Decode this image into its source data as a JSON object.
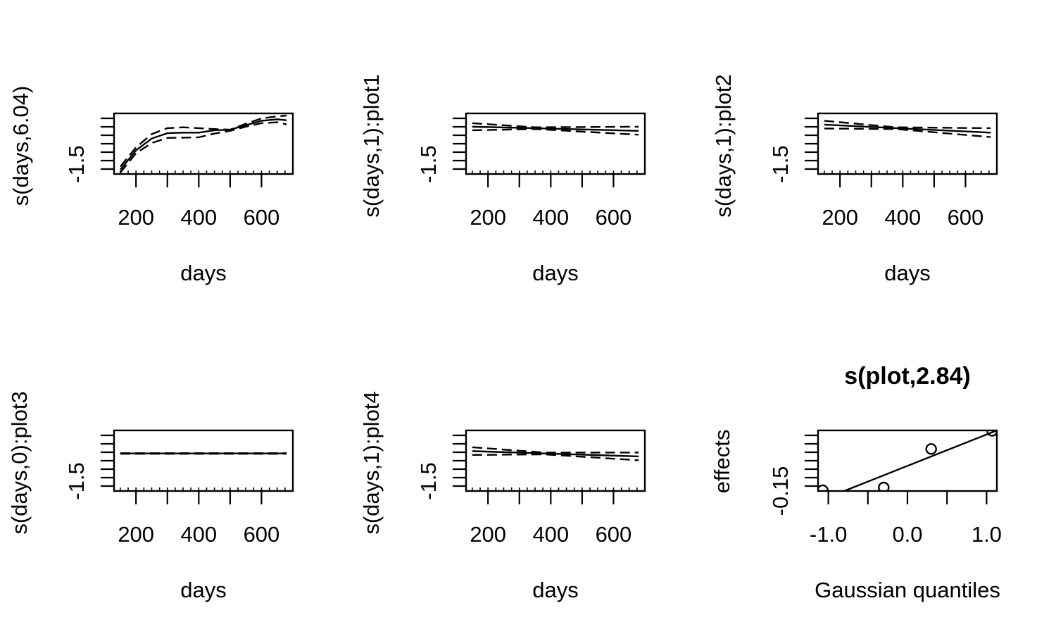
{
  "chart_data": [
    {
      "type": "line",
      "title": "",
      "xlabel": "days",
      "ylabel": "s(days,6.04)",
      "xlim": [
        130,
        700
      ],
      "ylim": [
        -1.6,
        0.45
      ],
      "xticks": [
        200,
        400,
        600
      ],
      "yticks_labeled": [
        -1.5
      ],
      "x": [
        150,
        200,
        250,
        300,
        350,
        400,
        450,
        500,
        550,
        600,
        650,
        680
      ],
      "series": [
        {
          "style": "solid",
          "values": [
            -1.45,
            -0.8,
            -0.4,
            -0.22,
            -0.2,
            -0.2,
            -0.12,
            -0.1,
            0.05,
            0.2,
            0.25,
            0.22
          ]
        },
        {
          "style": "dashed",
          "values": [
            -1.35,
            -0.7,
            -0.25,
            -0.05,
            -0.02,
            -0.05,
            -0.08,
            -0.1,
            0.1,
            0.28,
            0.35,
            0.38
          ]
        },
        {
          "style": "dashed",
          "values": [
            -1.55,
            -0.9,
            -0.55,
            -0.38,
            -0.37,
            -0.36,
            -0.23,
            -0.14,
            0.0,
            0.12,
            0.15,
            0.08
          ]
        }
      ]
    },
    {
      "type": "line",
      "title": "",
      "xlabel": "days",
      "ylabel": "s(days,1):plot1",
      "xlim": [
        130,
        700
      ],
      "ylim": [
        -1.6,
        0.45
      ],
      "xticks": [
        200,
        400,
        600
      ],
      "yticks_labeled": [
        -1.5
      ],
      "x": [
        150,
        350,
        680
      ],
      "series": [
        {
          "style": "solid",
          "values": [
            0.0,
            -0.05,
            -0.14
          ]
        },
        {
          "style": "dashed",
          "values": [
            0.12,
            -0.02,
            0.0
          ]
        },
        {
          "style": "dashed",
          "values": [
            -0.12,
            -0.08,
            -0.27
          ]
        }
      ]
    },
    {
      "type": "line",
      "title": "",
      "xlabel": "days",
      "ylabel": "s(days,1):plot2",
      "xlim": [
        130,
        700
      ],
      "ylim": [
        -1.6,
        0.45
      ],
      "xticks": [
        200,
        400,
        600
      ],
      "yticks_labeled": [
        -1.5
      ],
      "x": [
        150,
        380,
        680
      ],
      "series": [
        {
          "style": "solid",
          "values": [
            0.07,
            -0.05,
            -0.2
          ]
        },
        {
          "style": "dashed",
          "values": [
            0.2,
            -0.02,
            -0.05
          ]
        },
        {
          "style": "dashed",
          "values": [
            -0.06,
            -0.08,
            -0.35
          ]
        }
      ]
    },
    {
      "type": "line",
      "title": "",
      "xlabel": "days",
      "ylabel": "s(days,0):plot3",
      "xlim": [
        130,
        700
      ],
      "ylim": [
        -1.6,
        0.45
      ],
      "xticks": [
        200,
        400,
        600
      ],
      "yticks_labeled": [
        -1.5
      ],
      "x": [
        150,
        680
      ],
      "series": [
        {
          "style": "solid",
          "values": [
            -0.33,
            -0.33
          ]
        },
        {
          "style": "dashed",
          "values": [
            -0.32,
            -0.32
          ]
        },
        {
          "style": "dashed",
          "values": [
            -0.34,
            -0.34
          ]
        }
      ]
    },
    {
      "type": "line",
      "title": "",
      "xlabel": "days",
      "ylabel": "s(days,1):plot4",
      "xlim": [
        130,
        700
      ],
      "ylim": [
        -1.6,
        0.45
      ],
      "xticks": [
        200,
        400,
        600
      ],
      "yticks_labeled": [
        -1.5
      ],
      "x": [
        150,
        380,
        680
      ],
      "series": [
        {
          "style": "solid",
          "values": [
            -0.25,
            -0.33,
            -0.43
          ]
        },
        {
          "style": "dashed",
          "values": [
            -0.12,
            -0.3,
            -0.3
          ]
        },
        {
          "style": "dashed",
          "values": [
            -0.38,
            -0.36,
            -0.56
          ]
        }
      ]
    },
    {
      "type": "scatter",
      "title": "s(plot,2.84)",
      "xlabel": "Gaussian quantiles",
      "ylabel": "effects",
      "xlim": [
        -1.13,
        1.13
      ],
      "ylim": [
        -0.15,
        0.16
      ],
      "xticks": [
        -1.0,
        -0.5,
        0.0,
        0.5,
        1.0
      ],
      "xticks_labeled": [
        -1.0,
        0.0,
        1.0
      ],
      "yticks_labeled": [
        -0.15
      ],
      "points": [
        {
          "x": -1.07,
          "y": -0.146
        },
        {
          "x": -0.3,
          "y": -0.132
        },
        {
          "x": 0.3,
          "y": 0.065
        },
        {
          "x": 1.07,
          "y": 0.158
        }
      ],
      "line": {
        "x": [
          -0.8,
          1.13
        ],
        "y": [
          -0.15,
          0.16
        ]
      }
    }
  ]
}
